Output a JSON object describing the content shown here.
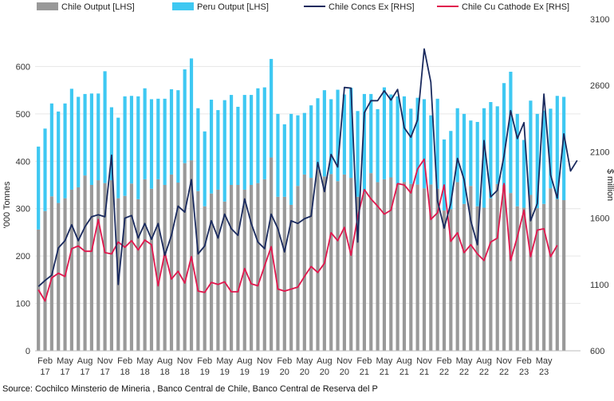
{
  "chart_data": {
    "type": "bar",
    "stacked_bars_lhs": true,
    "lhs_unit_label": "'000 Tonnes",
    "rhs_unit_label": "$ million",
    "ylim_left": [
      0,
      700
    ],
    "ylim_right": [
      600,
      3100
    ],
    "yticks_left": [
      0,
      100,
      200,
      300,
      400,
      500,
      600
    ],
    "yticks_right": [
      600,
      1100,
      1600,
      2100,
      2600,
      3100
    ],
    "legend_position": "top",
    "x_start": "Jan 17",
    "x_tick_labels": [
      {
        "index": 1,
        "month": "Feb",
        "year": "17"
      },
      {
        "index": 4,
        "month": "May",
        "year": "17"
      },
      {
        "index": 7,
        "month": "Aug",
        "year": "17"
      },
      {
        "index": 10,
        "month": "Nov",
        "year": "17"
      },
      {
        "index": 13,
        "month": "Feb",
        "year": "18"
      },
      {
        "index": 16,
        "month": "May",
        "year": "18"
      },
      {
        "index": 19,
        "month": "Aug",
        "year": "18"
      },
      {
        "index": 22,
        "month": "Nov",
        "year": "18"
      },
      {
        "index": 25,
        "month": "Feb",
        "year": "19"
      },
      {
        "index": 28,
        "month": "May",
        "year": "19"
      },
      {
        "index": 31,
        "month": "Aug",
        "year": "19"
      },
      {
        "index": 34,
        "month": "Nov",
        "year": "19"
      },
      {
        "index": 37,
        "month": "Feb",
        "year": "20"
      },
      {
        "index": 40,
        "month": "May",
        "year": "20"
      },
      {
        "index": 43,
        "month": "Aug",
        "year": "20"
      },
      {
        "index": 46,
        "month": "Nov",
        "year": "20"
      },
      {
        "index": 49,
        "month": "Feb",
        "year": "21"
      },
      {
        "index": 52,
        "month": "May",
        "year": "21"
      },
      {
        "index": 55,
        "month": "Aug",
        "year": "21"
      },
      {
        "index": 58,
        "month": "Nov",
        "year": "21"
      },
      {
        "index": 61,
        "month": "Feb",
        "year": "22"
      },
      {
        "index": 64,
        "month": "May",
        "year": "22"
      },
      {
        "index": 67,
        "month": "Aug",
        "year": "22"
      },
      {
        "index": 70,
        "month": "Nov",
        "year": "22"
      },
      {
        "index": 73,
        "month": "Feb",
        "year": "23"
      },
      {
        "index": 76,
        "month": "May",
        "year": "23"
      }
    ],
    "colors": {
      "chile_output": "#999999",
      "peru_output": "#3ec8f2",
      "chile_concs": "#1a2a5e",
      "chile_cathode": "#e0174d"
    },
    "series": [
      {
        "name": "Chile Output [LHS]",
        "axis": "left",
        "kind": "bar",
        "values": [
          256,
          295,
          326,
          312,
          322,
          340,
          345,
          370,
          350,
          360,
          354,
          360,
          322,
          327,
          353,
          320,
          362,
          342,
          362,
          350,
          372,
          355,
          396,
          402,
          337,
          305,
          332,
          340,
          315,
          350,
          350,
          340,
          350,
          354,
          362,
          408,
          325,
          325,
          308,
          348,
          372,
          365,
          383,
          368,
          373,
          358,
          372,
          365,
          325,
          334,
          375,
          356,
          362,
          366,
          353,
          356,
          352,
          351,
          343,
          351,
          342,
          296,
          299,
          356,
          310,
          348,
          305,
          302,
          322,
          352,
          350,
          333,
          305,
          302,
          329,
          301,
          310,
          343,
          320,
          318
        ]
      },
      {
        "name": "Peru Output [LHS]",
        "axis": "left",
        "kind": "bar",
        "values": [
          175,
          174,
          196,
          193,
          200,
          213,
          191,
          172,
          193,
          183,
          236,
          154,
          170,
          210,
          185,
          217,
          192,
          189,
          170,
          182,
          180,
          195,
          198,
          215,
          175,
          158,
          198,
          168,
          214,
          190,
          165,
          200,
          190,
          200,
          194,
          208,
          175,
          153,
          192,
          149,
          130,
          153,
          150,
          182,
          158,
          193,
          169,
          190,
          181,
          208,
          167,
          154,
          194,
          175,
          184,
          181,
          159,
          183,
          188,
          146,
          190,
          150,
          165,
          156,
          190,
          138,
          178,
          210,
          203,
          164,
          215,
          256,
          195,
          143,
          199,
          199,
          197,
          168,
          218,
          218
        ]
      },
      {
        "name": "Chile Concs Ex [RHS]",
        "axis": "right",
        "kind": "line",
        "values": [
          1085,
          1130,
          1170,
          1375,
          1430,
          1550,
          1430,
          1535,
          1610,
          1625,
          1610,
          2075,
          1100,
          1600,
          1620,
          1450,
          1560,
          1440,
          1560,
          1320,
          1470,
          1690,
          1645,
          1890,
          1330,
          1390,
          1580,
          1450,
          1630,
          1520,
          1470,
          1745,
          1560,
          1420,
          1370,
          1630,
          1520,
          1345,
          1580,
          1560,
          1595,
          1615,
          2020,
          1800,
          2080,
          1985,
          2585,
          2580,
          1420,
          2395,
          2485,
          2485,
          2560,
          2490,
          2570,
          2280,
          2210,
          2340,
          2875,
          2625,
          1730,
          1525,
          1710,
          2050,
          1890,
          1580,
          1400,
          2185,
          1760,
          1810,
          2070,
          2410,
          2200,
          2320,
          1580,
          1710,
          2535,
          1925,
          1750,
          2235,
          1955,
          2035
        ]
      },
      {
        "name": "Chile Cu Cathode Ex [RHS]",
        "axis": "right",
        "kind": "line",
        "values": [
          1060,
          975,
          1150,
          1185,
          1160,
          1370,
          1390,
          1350,
          1350,
          1590,
          1340,
          1330,
          1420,
          1380,
          1430,
          1360,
          1435,
          1400,
          1090,
          1340,
          1140,
          1200,
          1110,
          1310,
          1050,
          1040,
          1115,
          1100,
          1120,
          1045,
          1045,
          1220,
          1105,
          1090,
          1240,
          1385,
          1065,
          1050,
          1065,
          1080,
          1160,
          1235,
          1190,
          1260,
          1490,
          1430,
          1530,
          1320,
          1610,
          1815,
          1745,
          1690,
          1630,
          1660,
          1860,
          1850,
          1790,
          1970,
          2045,
          1590,
          1640,
          1850,
          1425,
          1490,
          1340,
          1400,
          1330,
          1280,
          1420,
          1450,
          1860,
          1280,
          1460,
          1660,
          1310,
          1510,
          1520,
          1310,
          1395
        ]
      }
    ]
  },
  "source_text": "Source: Cochilco Minsterio de Mineria , Banco Central de Chile, Banco Central de Reserva del P"
}
